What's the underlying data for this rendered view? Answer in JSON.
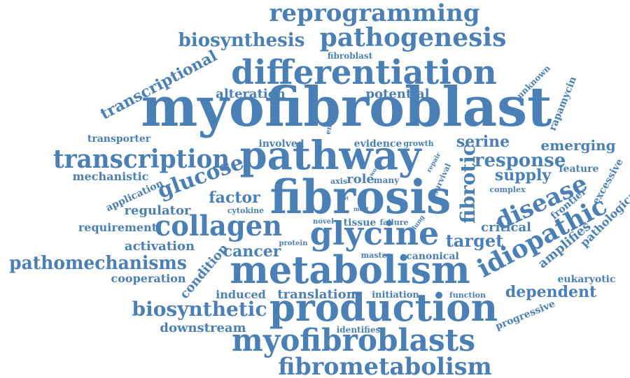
{
  "word_color": "#4a80b6",
  "background_color": "#ffffff",
  "words": [
    {
      "text": "reprogramming",
      "size": 34
    },
    {
      "text": "biosynthesis",
      "size": 26
    },
    {
      "text": "pathogenesis",
      "size": 36
    },
    {
      "text": "fibroblast",
      "size": 12
    },
    {
      "text": "differentiation",
      "size": 48
    },
    {
      "text": "transcriptional",
      "size": 22
    },
    {
      "text": "alteration",
      "size": 18
    },
    {
      "text": "potential",
      "size": 18
    },
    {
      "text": "unknown",
      "size": 12
    },
    {
      "text": "rapamycin",
      "size": 14
    },
    {
      "text": "myofibroblast",
      "size": 78
    },
    {
      "text": "enzyme",
      "size": 10
    },
    {
      "text": "transporter",
      "size": 14
    },
    {
      "text": "involved",
      "size": 14
    },
    {
      "text": "evidence",
      "size": 14
    },
    {
      "text": "growth",
      "size": 11
    },
    {
      "text": "serine",
      "size": 22
    },
    {
      "text": "emerging",
      "size": 20
    },
    {
      "text": "transcription",
      "size": 36
    },
    {
      "text": "pathway",
      "size": 56
    },
    {
      "text": "response",
      "size": 26
    },
    {
      "text": "repair",
      "size": 9
    },
    {
      "text": "fibrotic",
      "size": 28
    },
    {
      "text": "mechanistic",
      "size": 16
    },
    {
      "text": "glucose",
      "size": 30
    },
    {
      "text": "survival",
      "size": 11
    },
    {
      "text": "work",
      "size": 8
    },
    {
      "text": "supply",
      "size": 22
    },
    {
      "text": "feature",
      "size": 14
    },
    {
      "text": "excessive",
      "size": 14
    },
    {
      "text": "axis",
      "size": 11
    },
    {
      "text": "role",
      "size": 18
    },
    {
      "text": "many",
      "size": 12
    },
    {
      "text": "application",
      "size": 14
    },
    {
      "text": "fibrosis",
      "size": 66
    },
    {
      "text": "complex",
      "size": 11
    },
    {
      "text": "disease",
      "size": 34
    },
    {
      "text": "factor",
      "size": 22
    },
    {
      "text": "glut",
      "size": 7
    },
    {
      "text": "frontier",
      "size": 14
    },
    {
      "text": "regulator",
      "size": 18
    },
    {
      "text": "cytokine",
      "size": 11
    },
    {
      "text": "most",
      "size": 8
    },
    {
      "text": "pathological",
      "size": 16
    },
    {
      "text": "requirement",
      "size": 16
    },
    {
      "text": "collagen",
      "size": 40
    },
    {
      "text": "novel",
      "size": 10
    },
    {
      "text": "tissue",
      "size": 14
    },
    {
      "text": "failure",
      "size": 11
    },
    {
      "text": "lung",
      "size": 9
    },
    {
      "text": "critical",
      "size": 18
    },
    {
      "text": "glycine",
      "size": 46
    },
    {
      "text": "idiopathic",
      "size": 36
    },
    {
      "text": "activation",
      "size": 18
    },
    {
      "text": "condition",
      "size": 18
    },
    {
      "text": "cancer",
      "size": 22
    },
    {
      "text": "protein",
      "size": 10
    },
    {
      "text": "target",
      "size": 24
    },
    {
      "text": "amplifies",
      "size": 18
    },
    {
      "text": "pathomechanisms",
      "size": 26
    },
    {
      "text": "master",
      "size": 11
    },
    {
      "text": "canonical",
      "size": 14
    },
    {
      "text": "metabolism",
      "size": 54
    },
    {
      "text": "cooperation",
      "size": 16
    },
    {
      "text": "eukaryotic",
      "size": 14
    },
    {
      "text": "induced",
      "size": 16
    },
    {
      "text": "translation",
      "size": 18
    },
    {
      "text": "initiation",
      "size": 13
    },
    {
      "text": "function",
      "size": 11
    },
    {
      "text": "dependent",
      "size": 22
    },
    {
      "text": "biosynthetic",
      "size": 28
    },
    {
      "text": "production",
      "size": 54
    },
    {
      "text": "progressive",
      "size": 14
    },
    {
      "text": "downstream",
      "size": 18
    },
    {
      "text": "identifies",
      "size": 12
    },
    {
      "text": "myofibroblasts",
      "size": 44
    },
    {
      "text": "fibrometabolism",
      "size": 34
    }
  ]
}
